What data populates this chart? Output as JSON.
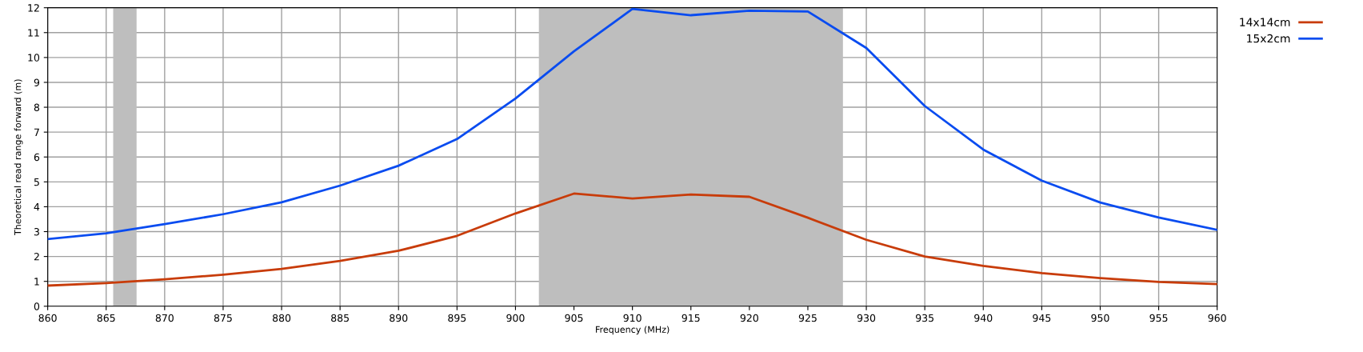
{
  "chart_data": {
    "type": "line",
    "xlabel": "Frequency (MHz)",
    "ylabel": "Theoretical read range forward (m)",
    "x": [
      860,
      865,
      870,
      875,
      880,
      885,
      890,
      895,
      900,
      905,
      910,
      915,
      920,
      925,
      930,
      935,
      940,
      945,
      950,
      955,
      960
    ],
    "series": [
      {
        "name": "14x14cm",
        "color": "#c83c0a",
        "values": [
          0.83,
          0.93,
          1.08,
          1.27,
          1.5,
          1.82,
          2.23,
          2.83,
          3.73,
          4.53,
          4.33,
          4.49,
          4.4,
          3.56,
          2.67,
          2.0,
          1.62,
          1.33,
          1.13,
          0.98,
          0.89
        ]
      },
      {
        "name": "15x2cm",
        "color": "#0a4cf0",
        "values": [
          2.7,
          2.93,
          3.3,
          3.7,
          4.18,
          4.85,
          5.65,
          6.72,
          8.35,
          10.25,
          11.95,
          11.7,
          11.88,
          11.85,
          10.38,
          8.05,
          6.3,
          5.05,
          4.17,
          3.57,
          3.07
        ]
      }
    ],
    "bands": [
      {
        "axis": "x",
        "from": 865.6,
        "to": 867.6,
        "color": "#bebebe"
      },
      {
        "axis": "x",
        "from": 902,
        "to": 928,
        "color": "#bebebe"
      }
    ],
    "xlim": [
      860,
      960
    ],
    "xticks": [
      860,
      865,
      870,
      875,
      880,
      885,
      890,
      895,
      900,
      905,
      910,
      915,
      920,
      925,
      930,
      935,
      940,
      945,
      950,
      955,
      960
    ],
    "ylim": [
      0,
      12
    ],
    "yticks": [
      0,
      1,
      2,
      3,
      4,
      5,
      6,
      7,
      8,
      9,
      10,
      11,
      12
    ],
    "grid": true,
    "legend": "top right",
    "marker": "none",
    "line_style": "solid"
  }
}
